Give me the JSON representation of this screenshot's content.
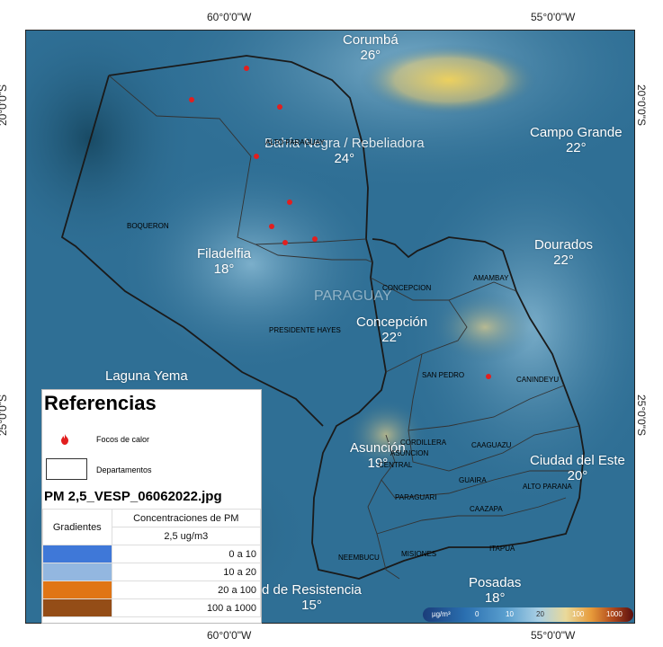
{
  "grid": {
    "top_left": "60°0'0\"W",
    "top_right": "55°0'0\"W",
    "bottom_left": "60°0'0\"W",
    "bottom_right": "55°0'0\"W",
    "left_upper": "20°0'0\"S",
    "left_lower": "25°0'0\"S",
    "right_upper": "20°0'0\"S",
    "right_lower": "25°0'0\"S"
  },
  "country_label": "PARAGUAY",
  "cities": [
    {
      "name": "Corumbá",
      "temp": "26°"
    },
    {
      "name": "Bahía Negra / Rebeliadora",
      "temp": "24°"
    },
    {
      "name": "Campo Grande",
      "temp": "22°"
    },
    {
      "name": "Filadelfia",
      "temp": "18°"
    },
    {
      "name": "Dourados",
      "temp": "22°"
    },
    {
      "name": "Concepción",
      "temp": "22°"
    },
    {
      "name": "Laguna Yema",
      "temp": ""
    },
    {
      "name": "Ciudad del Este",
      "temp": "20°"
    },
    {
      "name": "Asunción",
      "temp": "19°"
    },
    {
      "name": "Posadas",
      "temp": "18°"
    },
    {
      "name": "d de Resistencia",
      "temp": "15°"
    }
  ],
  "departments": [
    "ALTO PARAGUAY",
    "BOQUERON",
    "CONCEPCION",
    "AMAMBAY",
    "PRESIDENTE HAYES",
    "SAN PEDRO",
    "CANINDEYU",
    "CORDILLERA",
    "ASUNCION",
    "CENTRAL",
    "CAAGUAZU",
    "GUAIRA",
    "ALTO PARANA",
    "PARAGUARI",
    "CAAZAPA",
    "NEEMBUCU",
    "MISIONES",
    "ITAPUA"
  ],
  "legend": {
    "title": "Referencias",
    "fire_label": "Focos de calor",
    "dept_label": "Departamentos",
    "file_name": "PM 2,5_VESP_06062022.jpg",
    "col_gradients": "Gradientes",
    "col_conc_line1": "Concentraciones de PM",
    "col_conc_line2": "2,5 ug/m3",
    "rows": [
      {
        "color": "#3f78d8",
        "range": "0 a 10"
      },
      {
        "color": "#93b7e0",
        "range": "10 a 20"
      },
      {
        "color": "#e07515",
        "range": "20 a 100"
      },
      {
        "color": "#944d17",
        "range": "100 a 1000"
      }
    ]
  },
  "colorbar": {
    "unit": "µg/m³",
    "ticks": [
      "0",
      "10",
      "20",
      "100",
      "1000"
    ]
  },
  "colors": {
    "map_base": "#2f6f95",
    "fire": "#e21f1f",
    "hotspot": "#f0d060"
  }
}
